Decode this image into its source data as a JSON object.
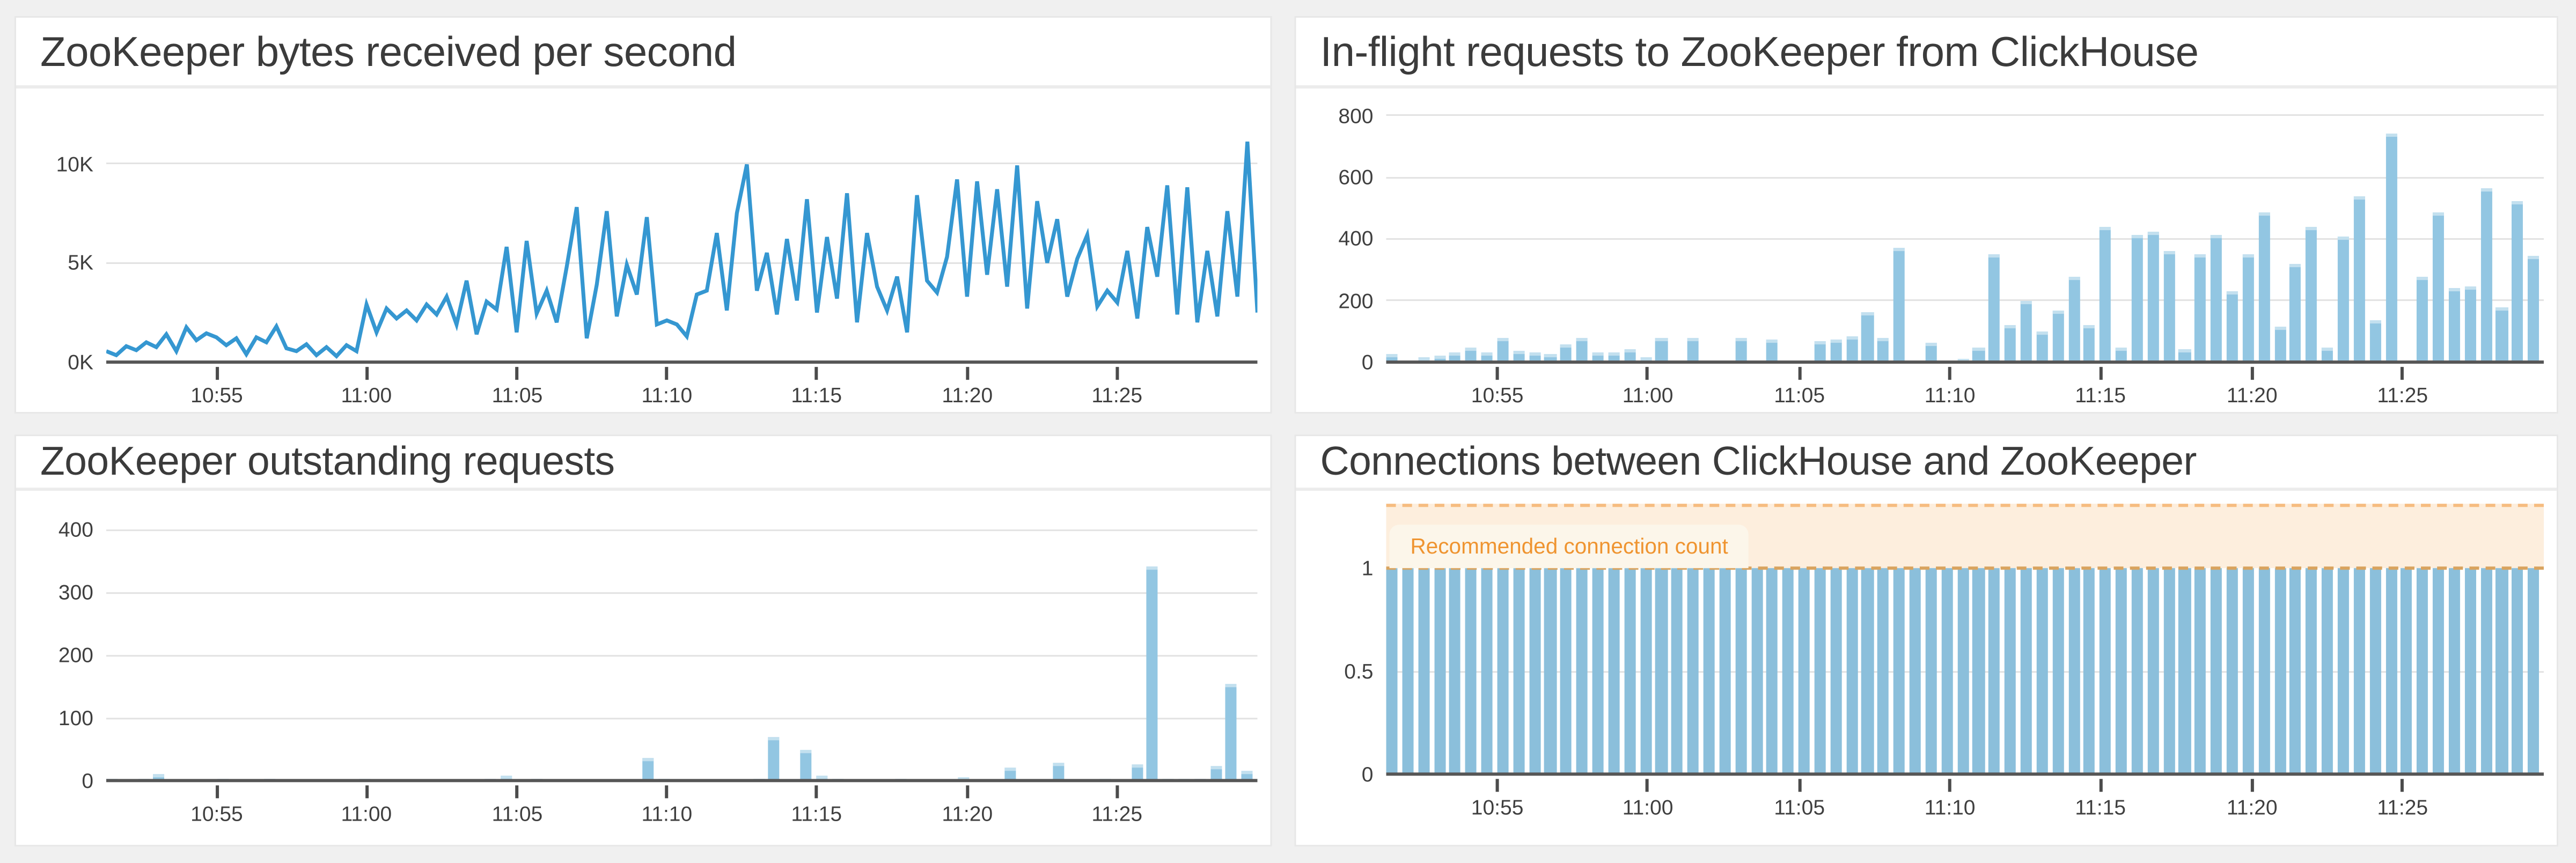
{
  "page": {
    "background": "#f0f0f0",
    "panel_background": "#ffffff",
    "grid_color": "#e2e2e2",
    "axis_color": "#565656",
    "text_color": "#3f3f3f",
    "title_color": "#3b3b3b"
  },
  "chart_data": [
    {
      "type": "line",
      "title": "ZooKeeper bytes received per second",
      "line_color": "#3597d1",
      "ylim": [
        0,
        11500
      ],
      "grid": "horizontal-only",
      "legend_position": "none",
      "y_ticks": [
        {
          "label": "0K",
          "value": 0,
          "grid": false
        },
        {
          "label": "5K",
          "value": 5000,
          "grid": true
        },
        {
          "label": "10K",
          "value": 10000,
          "grid": true
        }
      ],
      "x_ticks": [
        {
          "label": "10:55",
          "pos": 0.096
        },
        {
          "label": "11:00",
          "pos": 0.226
        },
        {
          "label": "11:05",
          "pos": 0.357
        },
        {
          "label": "11:10",
          "pos": 0.487
        },
        {
          "label": "11:15",
          "pos": 0.617
        },
        {
          "label": "11:20",
          "pos": 0.748
        },
        {
          "label": "11:25",
          "pos": 0.878
        }
      ],
      "values": [
        550,
        350,
        800,
        600,
        1000,
        750,
        1400,
        550,
        1750,
        1100,
        1450,
        1250,
        850,
        1200,
        400,
        1250,
        1000,
        1800,
        700,
        550,
        900,
        350,
        750,
        300,
        850,
        550,
        2900,
        1500,
        2700,
        2200,
        2600,
        2100,
        2900,
        2400,
        3300,
        1900,
        4100,
        1400,
        3050,
        2650,
        5800,
        1500,
        6100,
        2450,
        3600,
        2000,
        4800,
        7800,
        1200,
        3900,
        7600,
        2300,
        4900,
        3400,
        7300,
        1900,
        2100,
        1900,
        1300,
        3400,
        3600,
        6500,
        2600,
        7500,
        9950,
        3600,
        5500,
        2400,
        6200,
        3100,
        8200,
        2500,
        6300,
        3200,
        8500,
        2000,
        6500,
        3800,
        2600,
        4300,
        1500,
        8400,
        4100,
        3500,
        5300,
        9200,
        3300,
        9100,
        4400,
        8700,
        3800,
        9900,
        2700,
        8100,
        5000,
        7200,
        3300,
        5200,
        6400,
        2800,
        3600,
        3000,
        5600,
        2200,
        6800,
        4300,
        8900,
        2400,
        8800,
        2000,
        5600,
        2300,
        7600,
        3300,
        11100,
        2500
      ]
    },
    {
      "type": "bar",
      "title": "In-flight requests to ZooKeeper from ClickHouse",
      "bar_color": "#92c6e2",
      "ylim": [
        0,
        800
      ],
      "grid": "horizontal-only",
      "legend_position": "none",
      "y_ticks": [
        {
          "label": "0",
          "value": 0,
          "grid": false
        },
        {
          "label": "200",
          "value": 200,
          "grid": true
        },
        {
          "label": "400",
          "value": 400,
          "grid": true
        },
        {
          "label": "600",
          "value": 600,
          "grid": true
        },
        {
          "label": "800",
          "value": 800,
          "grid": true
        }
      ],
      "x_ticks": [
        {
          "label": "10:55",
          "pos": 0.096
        },
        {
          "label": "11:00",
          "pos": 0.226
        },
        {
          "label": "11:05",
          "pos": 0.357
        },
        {
          "label": "11:10",
          "pos": 0.487
        },
        {
          "label": "11:15",
          "pos": 0.617
        },
        {
          "label": "11:20",
          "pos": 0.748
        },
        {
          "label": "11:25",
          "pos": 0.878
        }
      ],
      "values": [
        25,
        0,
        15,
        22,
        30,
        48,
        33,
        80,
        38,
        30,
        26,
        55,
        80,
        32,
        32,
        44,
        18,
        80,
        0,
        80,
        0,
        0,
        80,
        0,
        74,
        0,
        0,
        67,
        71,
        85,
        160,
        80,
        370,
        0,
        65,
        0,
        12,
        48,
        350,
        122,
        198,
        97,
        168,
        278,
        122,
        438,
        48,
        412,
        422,
        362,
        40,
        352,
        412,
        232,
        352,
        488,
        117,
        317,
        438,
        48,
        408,
        538,
        138,
        740,
        0,
        278,
        488,
        242,
        248,
        562,
        177,
        522,
        345
      ]
    },
    {
      "type": "bar",
      "title": "ZooKeeper outstanding requests",
      "bar_color": "#92c6e2",
      "ylim": [
        0,
        400
      ],
      "grid": "horizontal-only",
      "legend_position": "none",
      "y_ticks": [
        {
          "label": "0",
          "value": 0,
          "grid": false
        },
        {
          "label": "100",
          "value": 100,
          "grid": true
        },
        {
          "label": "200",
          "value": 200,
          "grid": true
        },
        {
          "label": "300",
          "value": 300,
          "grid": true
        },
        {
          "label": "400",
          "value": 400,
          "grid": true
        }
      ],
      "x_ticks": [
        {
          "label": "10:55",
          "pos": 0.096
        },
        {
          "label": "11:00",
          "pos": 0.226
        },
        {
          "label": "11:05",
          "pos": 0.357
        },
        {
          "label": "11:10",
          "pos": 0.487
        },
        {
          "label": "11:15",
          "pos": 0.617
        },
        {
          "label": "11:20",
          "pos": 0.748
        },
        {
          "label": "11:25",
          "pos": 0.878
        }
      ],
      "values": [
        3,
        0,
        3,
        10,
        0,
        0,
        0,
        3,
        0,
        0,
        3,
        0,
        0,
        0,
        0,
        0,
        3,
        0,
        0,
        0,
        0,
        0,
        0,
        0,
        3,
        8,
        0,
        3,
        0,
        0,
        0,
        0,
        0,
        0,
        35,
        3,
        0,
        0,
        0,
        0,
        0,
        3,
        70,
        0,
        50,
        8,
        3,
        0,
        0,
        0,
        3,
        0,
        0,
        0,
        5,
        0,
        0,
        20,
        0,
        0,
        28,
        0,
        0,
        3,
        0,
        25,
        340,
        3,
        3,
        3,
        24,
        155,
        15
      ]
    },
    {
      "type": "bar",
      "title": "Connections between ClickHouse and ZooKeeper",
      "bar_color": "#8bbfdb",
      "ylim": [
        0,
        1.3
      ],
      "grid": "horizontal-only",
      "legend_position": "none",
      "bar_value": 1,
      "bar_count": 73,
      "y_ticks": [
        {
          "label": "0",
          "value": 0,
          "grid": false
        },
        {
          "label": "0.5",
          "value": 0.5,
          "grid": true
        },
        {
          "label": "1",
          "value": 1,
          "grid": false
        }
      ],
      "x_ticks": [
        {
          "label": "10:55",
          "pos": 0.096
        },
        {
          "label": "11:00",
          "pos": 0.226
        },
        {
          "label": "11:05",
          "pos": 0.357
        },
        {
          "label": "11:10",
          "pos": 0.487
        },
        {
          "label": "11:15",
          "pos": 0.617
        },
        {
          "label": "11:20",
          "pos": 0.748
        },
        {
          "label": "11:25",
          "pos": 0.878
        }
      ],
      "band": {
        "y_min": 1,
        "y_max": 1.31,
        "fill": "#fdeedd",
        "dash_color_top": "#f6bc80",
        "dash_color_bottom": "#d9a35e"
      },
      "annotation": {
        "text": "Recommended connection count",
        "text_color": "#ef9430",
        "background": "#fcf6ea"
      }
    }
  ]
}
